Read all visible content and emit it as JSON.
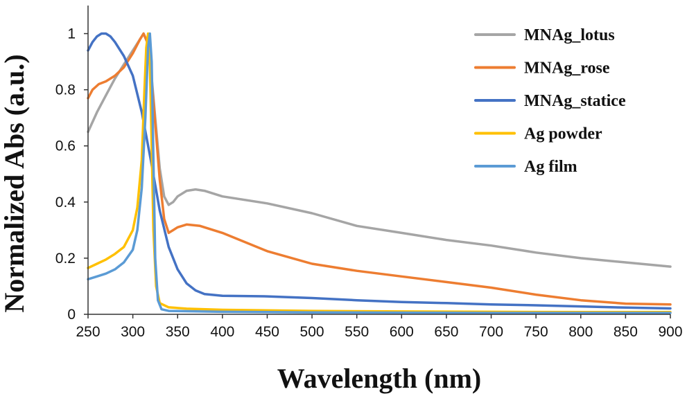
{
  "chart_data": {
    "type": "line",
    "title": "",
    "xlabel": "Wavelength (nm)",
    "ylabel": "Normalized Abs (a.u.)",
    "xlim": [
      250,
      900
    ],
    "ylim": [
      0,
      1.1
    ],
    "x_ticks": [
      250,
      300,
      350,
      400,
      450,
      500,
      550,
      600,
      650,
      700,
      750,
      800,
      850,
      900
    ],
    "x_tick_labels": [
      "250",
      "300",
      "350",
      "400",
      "450",
      "500",
      "550",
      "600",
      "650",
      "700",
      "750",
      "800",
      "850",
      "900"
    ],
    "y_ticks": [
      0,
      0.2,
      0.4,
      0.6,
      0.8,
      1.0
    ],
    "y_tick_labels": [
      "0",
      "0.2",
      "0.4",
      "0.6",
      "0.8",
      "1"
    ],
    "legend_position": "top-right",
    "grid": false,
    "series": [
      {
        "name": "MNAg_lotus",
        "color": "#A5A5A5",
        "points": [
          [
            250,
            0.65
          ],
          [
            260,
            0.72
          ],
          [
            270,
            0.78
          ],
          [
            280,
            0.84
          ],
          [
            290,
            0.89
          ],
          [
            300,
            0.94
          ],
          [
            308,
            0.98
          ],
          [
            312,
            1.0
          ],
          [
            316,
            0.97
          ],
          [
            320,
            0.88
          ],
          [
            325,
            0.7
          ],
          [
            330,
            0.52
          ],
          [
            335,
            0.42
          ],
          [
            340,
            0.39
          ],
          [
            345,
            0.4
          ],
          [
            350,
            0.42
          ],
          [
            360,
            0.44
          ],
          [
            370,
            0.445
          ],
          [
            380,
            0.44
          ],
          [
            400,
            0.42
          ],
          [
            450,
            0.395
          ],
          [
            500,
            0.36
          ],
          [
            550,
            0.315
          ],
          [
            600,
            0.29
          ],
          [
            650,
            0.265
          ],
          [
            700,
            0.245
          ],
          [
            750,
            0.22
          ],
          [
            800,
            0.2
          ],
          [
            850,
            0.185
          ],
          [
            900,
            0.17
          ]
        ]
      },
      {
        "name": "MNAg_rose",
        "color": "#ED7D31",
        "points": [
          [
            250,
            0.77
          ],
          [
            255,
            0.8
          ],
          [
            262,
            0.82
          ],
          [
            270,
            0.83
          ],
          [
            280,
            0.85
          ],
          [
            290,
            0.88
          ],
          [
            300,
            0.93
          ],
          [
            308,
            0.98
          ],
          [
            312,
            1.0
          ],
          [
            316,
            0.97
          ],
          [
            320,
            0.87
          ],
          [
            325,
            0.68
          ],
          [
            330,
            0.48
          ],
          [
            335,
            0.34
          ],
          [
            340,
            0.29
          ],
          [
            345,
            0.3
          ],
          [
            350,
            0.31
          ],
          [
            360,
            0.32
          ],
          [
            375,
            0.315
          ],
          [
            400,
            0.29
          ],
          [
            450,
            0.225
          ],
          [
            500,
            0.18
          ],
          [
            550,
            0.155
          ],
          [
            600,
            0.135
          ],
          [
            650,
            0.115
          ],
          [
            700,
            0.095
          ],
          [
            750,
            0.07
          ],
          [
            800,
            0.05
          ],
          [
            850,
            0.038
          ],
          [
            900,
            0.035
          ]
        ]
      },
      {
        "name": "MNAg_statice",
        "color": "#4472C4",
        "points": [
          [
            250,
            0.94
          ],
          [
            255,
            0.97
          ],
          [
            260,
            0.99
          ],
          [
            265,
            1.0
          ],
          [
            270,
            1.0
          ],
          [
            275,
            0.99
          ],
          [
            280,
            0.97
          ],
          [
            290,
            0.92
          ],
          [
            300,
            0.85
          ],
          [
            310,
            0.72
          ],
          [
            320,
            0.55
          ],
          [
            330,
            0.37
          ],
          [
            340,
            0.24
          ],
          [
            350,
            0.16
          ],
          [
            360,
            0.11
          ],
          [
            370,
            0.085
          ],
          [
            380,
            0.072
          ],
          [
            400,
            0.066
          ],
          [
            450,
            0.064
          ],
          [
            500,
            0.058
          ],
          [
            550,
            0.05
          ],
          [
            600,
            0.044
          ],
          [
            650,
            0.04
          ],
          [
            700,
            0.035
          ],
          [
            750,
            0.032
          ],
          [
            800,
            0.028
          ],
          [
            850,
            0.024
          ],
          [
            900,
            0.021
          ]
        ]
      },
      {
        "name": "Ag powder",
        "color": "#FFC000",
        "points": [
          [
            250,
            0.165
          ],
          [
            260,
            0.18
          ],
          [
            270,
            0.195
          ],
          [
            280,
            0.215
          ],
          [
            290,
            0.24
          ],
          [
            300,
            0.3
          ],
          [
            305,
            0.38
          ],
          [
            310,
            0.55
          ],
          [
            313,
            0.8
          ],
          [
            315,
            0.95
          ],
          [
            317,
            1.0
          ],
          [
            319,
            0.9
          ],
          [
            321,
            0.6
          ],
          [
            323,
            0.3
          ],
          [
            326,
            0.1
          ],
          [
            330,
            0.04
          ],
          [
            340,
            0.025
          ],
          [
            360,
            0.02
          ],
          [
            400,
            0.016
          ],
          [
            500,
            0.012
          ],
          [
            600,
            0.01
          ],
          [
            700,
            0.009
          ],
          [
            800,
            0.008
          ],
          [
            900,
            0.008
          ]
        ]
      },
      {
        "name": "Ag film",
        "color": "#5B9BD5",
        "points": [
          [
            250,
            0.125
          ],
          [
            260,
            0.135
          ],
          [
            270,
            0.145
          ],
          [
            280,
            0.16
          ],
          [
            290,
            0.185
          ],
          [
            300,
            0.23
          ],
          [
            305,
            0.3
          ],
          [
            310,
            0.45
          ],
          [
            314,
            0.7
          ],
          [
            317,
            0.95
          ],
          [
            319,
            1.0
          ],
          [
            321,
            0.9
          ],
          [
            323,
            0.55
          ],
          [
            325,
            0.2
          ],
          [
            328,
            0.05
          ],
          [
            332,
            0.018
          ],
          [
            340,
            0.012
          ],
          [
            400,
            0.009
          ],
          [
            500,
            0.007
          ],
          [
            600,
            0.006
          ],
          [
            700,
            0.005
          ],
          [
            800,
            0.005
          ],
          [
            900,
            0.005
          ]
        ]
      }
    ]
  }
}
